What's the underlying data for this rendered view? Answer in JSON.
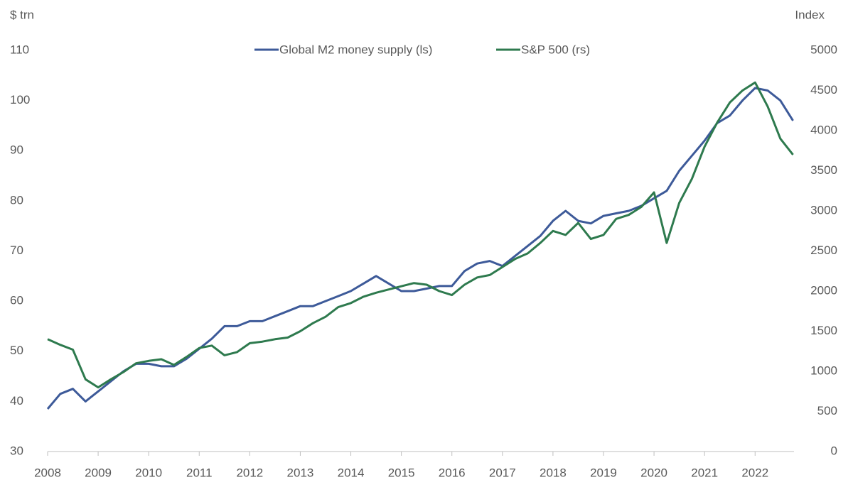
{
  "chart_data": {
    "type": "line",
    "y_label": "$ trn",
    "y2_label": "Index",
    "x": [
      2008,
      2008.25,
      2008.5,
      2008.75,
      2009,
      2009.25,
      2009.5,
      2009.75,
      2010,
      2010.25,
      2010.5,
      2010.75,
      2011,
      2011.25,
      2011.5,
      2011.75,
      2012,
      2012.25,
      2012.5,
      2012.75,
      2013,
      2013.25,
      2013.5,
      2013.75,
      2014,
      2014.25,
      2014.5,
      2014.75,
      2015,
      2015.25,
      2015.5,
      2015.75,
      2016,
      2016.25,
      2016.5,
      2016.75,
      2017,
      2017.25,
      2017.5,
      2017.75,
      2018,
      2018.25,
      2018.5,
      2018.75,
      2019,
      2019.25,
      2019.5,
      2019.75,
      2020,
      2020.25,
      2020.5,
      2020.75,
      2021,
      2021.25,
      2021.5,
      2021.75,
      2022,
      2022.25,
      2022.5,
      2022.75
    ],
    "series": [
      {
        "name": "Global M2 money supply (ls)",
        "color": "#3d5a99",
        "axis": "y",
        "values": [
          38.5,
          41.5,
          42.5,
          40,
          42,
          44,
          46,
          47.5,
          47.5,
          47,
          47,
          48.5,
          50.5,
          52.5,
          55,
          55,
          56,
          56,
          57,
          58,
          59,
          59,
          60,
          61,
          62,
          63.5,
          65,
          63.5,
          62,
          62,
          62.5,
          63,
          63,
          66,
          67.5,
          68,
          67,
          69,
          71,
          73,
          76,
          78,
          76,
          75.5,
          77,
          77.5,
          78,
          79,
          80.5,
          82,
          86,
          89,
          92,
          95.5,
          97,
          100,
          102.5,
          102,
          100,
          96
        ]
      },
      {
        "name": "S&P 500 (rs)",
        "color": "#2e7a4e",
        "axis": "y2",
        "values": [
          1400,
          1330,
          1270,
          900,
          800,
          900,
          990,
          1100,
          1130,
          1150,
          1080,
          1180,
          1290,
          1320,
          1200,
          1240,
          1350,
          1370,
          1400,
          1420,
          1500,
          1600,
          1680,
          1800,
          1850,
          1930,
          1980,
          2020,
          2060,
          2100,
          2080,
          2000,
          1950,
          2080,
          2170,
          2200,
          2300,
          2400,
          2470,
          2600,
          2750,
          2700,
          2850,
          2650,
          2700,
          2900,
          2950,
          3050,
          3230,
          2600,
          3100,
          3400,
          3800,
          4100,
          4350,
          4500,
          4600,
          4300,
          3900,
          3700
        ]
      }
    ],
    "xlim": [
      2008,
      2022.77
    ],
    "xticks": [
      2008,
      2009,
      2010,
      2011,
      2012,
      2013,
      2014,
      2015,
      2016,
      2017,
      2018,
      2019,
      2020,
      2021,
      2022
    ],
    "ylim": [
      30,
      110
    ],
    "yticks": [
      30,
      40,
      50,
      60,
      70,
      80,
      90,
      100,
      110
    ],
    "y2lim": [
      0,
      5000
    ],
    "y2ticks": [
      0,
      500,
      1000,
      1500,
      2000,
      2500,
      3000,
      3500,
      4000,
      4500,
      5000
    ],
    "grid": false,
    "legend": "top"
  }
}
